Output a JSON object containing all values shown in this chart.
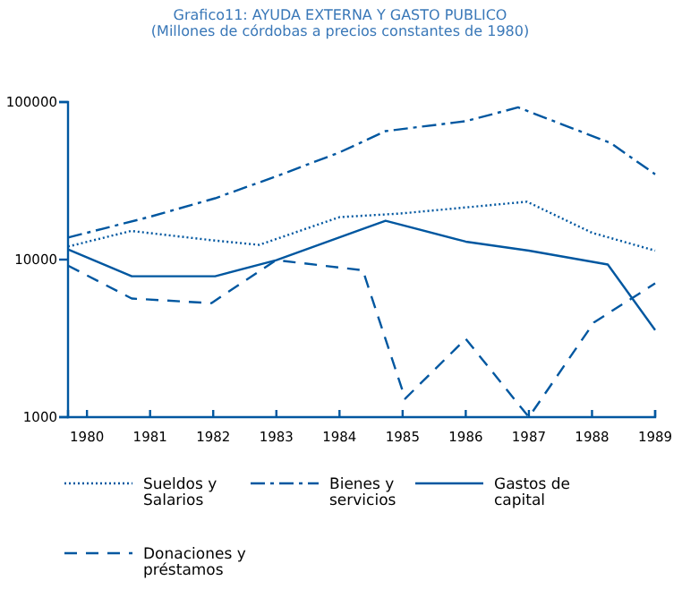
{
  "chart_data": {
    "type": "line",
    "title": "Grafico11: AYUDA EXTERNA Y GASTO PUBLICO",
    "subtitle": "(Millones de córdobas a precios constantes de 1980)",
    "log": true,
    "legend": "bottom",
    "grid": false,
    "xlim": [
      1979.7,
      1989
    ],
    "xticks": [
      1980,
      1981,
      1982,
      1983,
      1984,
      1985,
      1986,
      1987,
      1988,
      1989
    ],
    "ylim": [
      1000,
      100000
    ],
    "yticks": [
      1000,
      10000,
      100000
    ],
    "series": [
      {
        "name": "Sueldos y Salarios",
        "color": "#0057a0",
        "line_style": "dotted",
        "x": [
          1979.7,
          1980.7,
          1982.03,
          1982.73,
          1984.0,
          1984.96,
          1986.97,
          1988.0,
          1989
        ],
        "values": [
          12100,
          15200,
          13200,
          12400,
          18600,
          19600,
          23300,
          14800,
          11400
        ]
      },
      {
        "name": "Bienes y servicios",
        "color": "#0057a0",
        "line_style": "dashdot",
        "x": [
          1979.7,
          1981,
          1982.03,
          1983,
          1984,
          1984.73,
          1986,
          1986.83,
          1988.3,
          1989
        ],
        "values": [
          13800,
          18700,
          24500,
          33800,
          47900,
          65400,
          75600,
          92500,
          54800,
          34800
        ]
      },
      {
        "name": "Gastos de capital",
        "color": "#0057a0",
        "line_style": "solid",
        "x": [
          1979.7,
          1980.71,
          1982.03,
          1983,
          1984.73,
          1986,
          1987,
          1988.25,
          1989
        ],
        "values": [
          11600,
          7840,
          7840,
          9930,
          17650,
          13000,
          11400,
          9300,
          3570
        ]
      },
      {
        "name": "Donaciones y préstamos",
        "color": "#0057a0",
        "line_style": "dashed",
        "x": [
          1979.7,
          1980.71,
          1981.97,
          1983,
          1984.37,
          1985.04,
          1986,
          1987,
          1988.03,
          1989
        ],
        "values": [
          9160,
          5660,
          5290,
          9930,
          8550,
          1310,
          3140,
          1000,
          3990,
          7060
        ]
      }
    ]
  }
}
